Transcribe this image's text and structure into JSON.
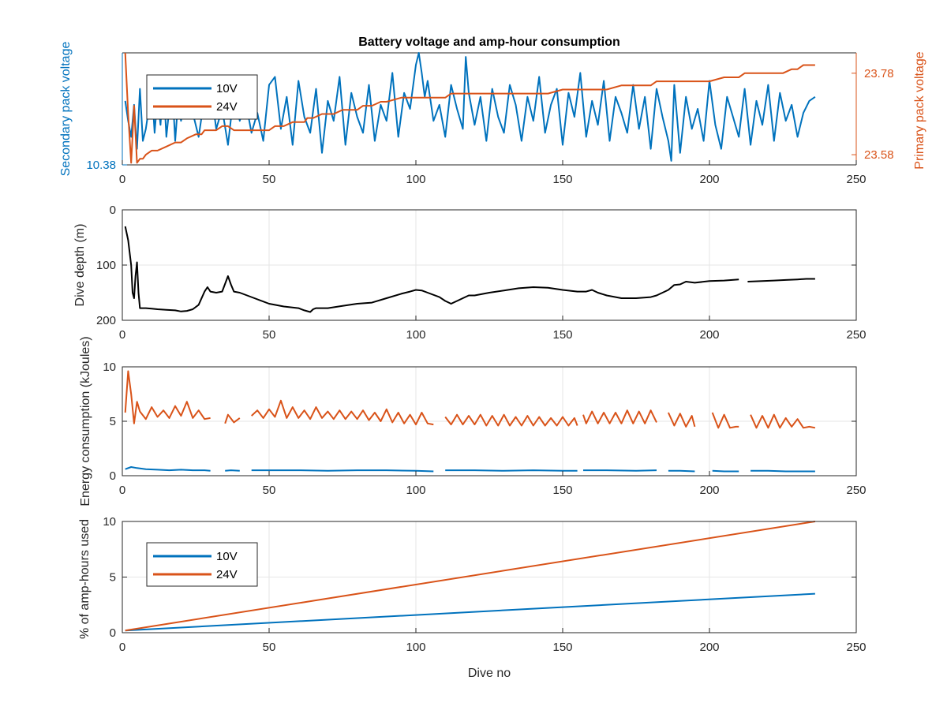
{
  "colors": {
    "series_10v": "#0072BD",
    "series_24v": "#D95319",
    "depth": "#000000",
    "axis": "#262626",
    "grid": "#e6e6e6"
  },
  "chart_data": [
    {
      "type": "line",
      "title": "Battery voltage and amp-hour consumption",
      "ylabel": "Secondary pack voltage",
      "ylabel_right": "Primary pack voltage",
      "xlim": [
        0,
        250
      ],
      "xticks": [
        "0",
        "50",
        "100",
        "150",
        "200",
        "250"
      ],
      "ylim_left": [
        10.38,
        10.66
      ],
      "yticks_left": [
        "10.38"
      ],
      "ylim_right": [
        23.555,
        23.83
      ],
      "yticks_right": [
        "23.58",
        "23.78"
      ],
      "grid": false,
      "legend": {
        "position": "top-left",
        "entries": [
          "10V",
          "24V"
        ]
      },
      "series": [
        {
          "name": "10V",
          "axis": "left",
          "x": [
            1,
            2,
            3,
            4,
            5,
            6,
            7,
            8,
            9,
            10,
            11,
            12,
            13,
            14,
            15,
            16,
            17,
            18,
            19,
            20,
            22,
            24,
            26,
            28,
            30,
            32,
            34,
            36,
            38,
            40,
            42,
            44,
            46,
            48,
            50,
            52,
            54,
            56,
            58,
            60,
            62,
            64,
            66,
            68,
            70,
            72,
            74,
            76,
            78,
            80,
            82,
            84,
            86,
            88,
            90,
            92,
            94,
            96,
            98,
            100,
            101,
            102,
            103,
            104,
            106,
            108,
            110,
            112,
            114,
            116,
            117,
            118,
            120,
            122,
            124,
            126,
            128,
            130,
            132,
            134,
            136,
            138,
            140,
            142,
            144,
            146,
            148,
            150,
            152,
            154,
            156,
            158,
            160,
            162,
            164,
            166,
            168,
            170,
            172,
            174,
            176,
            178,
            180,
            182,
            184,
            186,
            187,
            188,
            190,
            192,
            194,
            196,
            198,
            200,
            202,
            204,
            206,
            208,
            210,
            212,
            214,
            216,
            218,
            220,
            222,
            224,
            226,
            228,
            230,
            232,
            234,
            236
          ],
          "values": [
            10.54,
            10.49,
            10.45,
            10.53,
            10.42,
            10.57,
            10.44,
            10.47,
            10.52,
            10.58,
            10.46,
            10.55,
            10.48,
            10.59,
            10.45,
            10.52,
            10.58,
            10.44,
            10.54,
            10.49,
            10.57,
            10.51,
            10.45,
            10.55,
            10.58,
            10.47,
            10.52,
            10.43,
            10.56,
            10.49,
            10.54,
            10.46,
            10.51,
            10.44,
            10.58,
            10.6,
            10.47,
            10.55,
            10.43,
            10.59,
            10.5,
            10.46,
            10.57,
            10.41,
            10.54,
            10.49,
            10.6,
            10.43,
            10.56,
            10.5,
            10.46,
            10.58,
            10.44,
            10.53,
            10.49,
            10.61,
            10.45,
            10.56,
            10.52,
            10.63,
            10.66,
            10.61,
            10.55,
            10.59,
            10.49,
            10.53,
            10.45,
            10.58,
            10.52,
            10.47,
            10.65,
            10.56,
            10.48,
            10.55,
            10.44,
            10.57,
            10.5,
            10.46,
            10.58,
            10.53,
            10.44,
            10.55,
            10.49,
            10.6,
            10.46,
            10.53,
            10.57,
            10.43,
            10.56,
            10.5,
            10.61,
            10.45,
            10.54,
            10.48,
            10.59,
            10.44,
            10.55,
            10.51,
            10.46,
            10.58,
            10.47,
            10.55,
            10.42,
            10.57,
            10.5,
            10.44,
            10.39,
            10.58,
            10.41,
            10.55,
            10.47,
            10.52,
            10.44,
            10.59,
            10.48,
            10.42,
            10.55,
            10.5,
            10.45,
            10.57,
            10.43,
            10.54,
            10.48,
            10.58,
            10.44,
            10.56,
            10.49,
            10.53,
            10.45,
            10.51,
            10.54,
            10.55
          ]
        },
        {
          "name": "24V",
          "axis": "right",
          "x": [
            1,
            2,
            3,
            4,
            5,
            6,
            7,
            8,
            10,
            12,
            15,
            18,
            20,
            22,
            25,
            27,
            28,
            30,
            32,
            34,
            36,
            38,
            40,
            45,
            50,
            52,
            55,
            58,
            60,
            62,
            63,
            65,
            68,
            70,
            72,
            75,
            78,
            80,
            82,
            85,
            88,
            90,
            95,
            100,
            105,
            110,
            112,
            115,
            120,
            125,
            130,
            135,
            140,
            145,
            150,
            155,
            160,
            165,
            170,
            175,
            178,
            180,
            182,
            185,
            190,
            195,
            200,
            205,
            210,
            212,
            215,
            220,
            225,
            228,
            230,
            232,
            234,
            236
          ],
          "values": [
            23.83,
            23.68,
            23.56,
            23.7,
            23.56,
            23.57,
            23.57,
            23.58,
            23.59,
            23.59,
            23.6,
            23.61,
            23.61,
            23.62,
            23.63,
            23.63,
            23.64,
            23.64,
            23.64,
            23.65,
            23.65,
            23.64,
            23.64,
            23.64,
            23.64,
            23.65,
            23.65,
            23.66,
            23.66,
            23.66,
            23.67,
            23.67,
            23.68,
            23.68,
            23.68,
            23.69,
            23.69,
            23.69,
            23.7,
            23.7,
            23.71,
            23.71,
            23.72,
            23.72,
            23.72,
            23.72,
            23.73,
            23.73,
            23.73,
            23.73,
            23.73,
            23.73,
            23.73,
            23.73,
            23.74,
            23.74,
            23.74,
            23.74,
            23.75,
            23.75,
            23.75,
            23.75,
            23.76,
            23.76,
            23.76,
            23.76,
            23.76,
            23.77,
            23.77,
            23.78,
            23.78,
            23.78,
            23.78,
            23.79,
            23.79,
            23.8,
            23.8,
            23.8
          ]
        }
      ]
    },
    {
      "type": "line",
      "xlim": [
        0,
        250
      ],
      "xticks": [
        "0",
        "50",
        "100",
        "150",
        "200",
        "250"
      ],
      "ylabel": "Dive depth (m)",
      "ylim": [
        0,
        200
      ],
      "y_reversed": true,
      "yticks": [
        "0",
        "100",
        "200"
      ],
      "grid": true,
      "series": [
        {
          "x": [
            1,
            2,
            3,
            3.5,
            4,
            4.5,
            5,
            5.5,
            6,
            7,
            8,
            10,
            12,
            15,
            18,
            20,
            22,
            24,
            26,
            28,
            29,
            30,
            32,
            34,
            36,
            37,
            38,
            40,
            45,
            50,
            55,
            60,
            62,
            64,
            65,
            66,
            70,
            75,
            80,
            85,
            90,
            95,
            98,
            100,
            102,
            104,
            108,
            110,
            112,
            114,
            116,
            118,
            120,
            125,
            130,
            135,
            140,
            145,
            150,
            155,
            158,
            160,
            162,
            165,
            170,
            175,
            180,
            182,
            184,
            186,
            188,
            190,
            192,
            195,
            200,
            205,
            210
          ],
          "values": [
            30,
            55,
            100,
            150,
            160,
            120,
            95,
            150,
            178,
            178,
            178,
            179,
            180,
            181,
            182,
            184,
            183,
            180,
            172,
            148,
            140,
            148,
            150,
            148,
            120,
            135,
            148,
            150,
            160,
            170,
            175,
            178,
            182,
            185,
            180,
            178,
            178,
            174,
            170,
            168,
            160,
            152,
            148,
            145,
            146,
            150,
            158,
            165,
            170,
            165,
            160,
            155,
            155,
            150,
            146,
            142,
            140,
            141,
            145,
            148,
            148,
            145,
            150,
            155,
            160,
            160,
            158,
            155,
            150,
            145,
            136,
            135,
            130,
            132,
            129,
            128,
            126
          ]
        },
        {
          "x": [
            213,
            218,
            222,
            226,
            230,
            233,
            236
          ],
          "values": [
            130,
            129,
            128,
            127,
            126,
            125,
            125
          ]
        }
      ]
    },
    {
      "type": "line",
      "xlim": [
        0,
        250
      ],
      "xticks": [
        "0",
        "50",
        "100",
        "150",
        "200",
        "250"
      ],
      "ylabel": "Energy consumption (kJoules)",
      "ylim": [
        0,
        10
      ],
      "yticks": [
        "0",
        "5",
        "10"
      ],
      "grid": true,
      "series": [
        {
          "name": "24V",
          "segments": [
            [
              1,
              30
            ],
            [
              35,
              40
            ],
            [
              44,
              106
            ],
            [
              110,
              155
            ],
            [
              157,
              182
            ],
            [
              186,
              195
            ],
            [
              201,
              210
            ],
            [
              214,
              236
            ]
          ],
          "x": [
            1,
            2,
            3,
            4,
            5,
            6,
            8,
            10,
            12,
            14,
            16,
            18,
            20,
            22,
            24,
            26,
            28,
            30,
            35,
            36,
            38,
            40,
            44,
            46,
            48,
            50,
            52,
            54,
            56,
            58,
            60,
            62,
            64,
            66,
            68,
            70,
            72,
            74,
            76,
            78,
            80,
            82,
            84,
            86,
            88,
            90,
            92,
            94,
            96,
            98,
            100,
            102,
            104,
            106,
            110,
            112,
            114,
            116,
            118,
            120,
            122,
            124,
            126,
            128,
            130,
            132,
            134,
            136,
            138,
            140,
            142,
            144,
            146,
            148,
            150,
            152,
            154,
            155,
            157,
            158,
            160,
            162,
            164,
            166,
            168,
            170,
            172,
            174,
            176,
            178,
            180,
            182,
            186,
            188,
            190,
            192,
            194,
            195,
            201,
            203,
            205,
            207,
            209,
            210,
            214,
            216,
            218,
            220,
            222,
            224,
            226,
            228,
            230,
            232,
            234,
            236
          ],
          "values": [
            5.8,
            9.6,
            7.5,
            4.8,
            6.8,
            5.9,
            5.2,
            6.3,
            5.4,
            6.0,
            5.3,
            6.4,
            5.5,
            6.8,
            5.3,
            6.0,
            5.2,
            5.3,
            4.8,
            5.6,
            4.9,
            5.3,
            5.5,
            6.0,
            5.3,
            6.1,
            5.4,
            6.9,
            5.3,
            6.3,
            5.3,
            6.0,
            5.2,
            6.3,
            5.3,
            5.9,
            5.2,
            6.0,
            5.2,
            5.9,
            5.2,
            6.0,
            5.1,
            5.8,
            5.0,
            6.1,
            4.9,
            5.8,
            4.8,
            5.6,
            4.7,
            5.8,
            4.8,
            4.7,
            5.4,
            4.7,
            5.6,
            4.7,
            5.5,
            4.7,
            5.6,
            4.6,
            5.5,
            4.6,
            5.6,
            4.6,
            5.4,
            4.6,
            5.5,
            4.6,
            5.4,
            4.6,
            5.3,
            4.6,
            5.4,
            4.6,
            5.3,
            4.6,
            5.6,
            4.8,
            5.9,
            4.8,
            5.8,
            4.8,
            5.8,
            4.8,
            6.0,
            4.8,
            5.9,
            4.8,
            6.0,
            4.9,
            5.8,
            4.6,
            5.7,
            4.5,
            5.5,
            4.5,
            5.8,
            4.4,
            5.6,
            4.4,
            4.5,
            4.5,
            5.6,
            4.4,
            5.5,
            4.4,
            5.6,
            4.4,
            5.3,
            4.5,
            5.2,
            4.4,
            4.5,
            4.4
          ]
        },
        {
          "name": "10V",
          "segments": [
            [
              1,
              30
            ],
            [
              35,
              40
            ],
            [
              44,
              106
            ],
            [
              110,
              155
            ],
            [
              157,
              182
            ],
            [
              186,
              195
            ],
            [
              201,
              210
            ],
            [
              214,
              236
            ]
          ],
          "x": [
            1,
            3,
            5,
            8,
            12,
            16,
            20,
            24,
            28,
            30,
            35,
            37,
            40,
            44,
            50,
            60,
            70,
            80,
            90,
            100,
            106,
            110,
            120,
            130,
            140,
            150,
            155,
            157,
            165,
            175,
            182,
            186,
            190,
            195,
            201,
            205,
            210,
            214,
            220,
            226,
            232,
            236
          ],
          "values": [
            0.6,
            0.8,
            0.7,
            0.6,
            0.55,
            0.5,
            0.55,
            0.5,
            0.5,
            0.45,
            0.45,
            0.5,
            0.45,
            0.5,
            0.5,
            0.5,
            0.45,
            0.5,
            0.5,
            0.45,
            0.4,
            0.5,
            0.5,
            0.45,
            0.5,
            0.45,
            0.45,
            0.5,
            0.5,
            0.45,
            0.5,
            0.45,
            0.45,
            0.4,
            0.45,
            0.4,
            0.4,
            0.45,
            0.45,
            0.4,
            0.4,
            0.4
          ]
        }
      ]
    },
    {
      "type": "line",
      "xlim": [
        0,
        250
      ],
      "xticks": [
        "0",
        "50",
        "100",
        "150",
        "200",
        "250"
      ],
      "xlabel": "Dive no",
      "ylabel": "% of amp-hours used",
      "ylim": [
        0,
        10
      ],
      "yticks": [
        "0",
        "5",
        "10"
      ],
      "grid": true,
      "legend": {
        "position": "top-left",
        "entries": [
          "10V",
          "24V"
        ]
      },
      "series": [
        {
          "name": "10V",
          "x": [
            1,
            236
          ],
          "values": [
            0.2,
            3.5
          ]
        },
        {
          "name": "24V",
          "x": [
            1,
            236
          ],
          "values": [
            0.2,
            10.0
          ]
        }
      ]
    }
  ]
}
